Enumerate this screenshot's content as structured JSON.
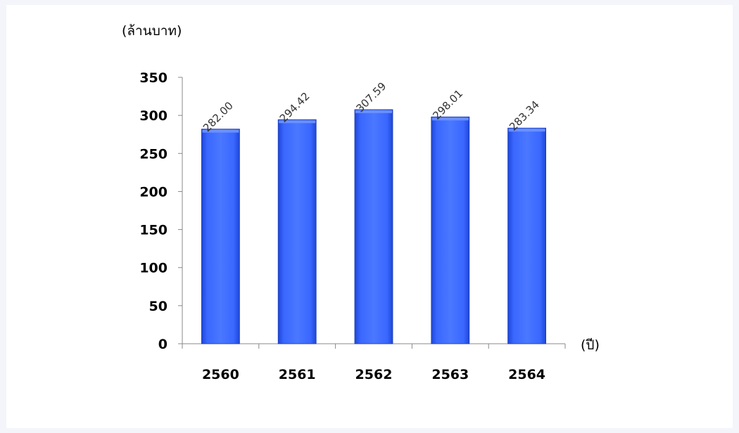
{
  "chart_data": {
    "type": "bar",
    "ylabel": "(ล้านบาท)",
    "xlabel": "(ปี)",
    "categories": [
      "2560",
      "2561",
      "2562",
      "2563",
      "2564"
    ],
    "values": [
      282.0,
      294.42,
      307.59,
      298.01,
      283.34
    ],
    "value_labels": [
      "282.00",
      "294.42",
      "307.59",
      "298.01",
      "283.34"
    ],
    "ylim": [
      0,
      350
    ],
    "yticks": [
      0,
      50,
      100,
      150,
      200,
      250,
      300,
      350
    ],
    "grid": false,
    "legend": "none",
    "bar_color": "#3366ff"
  }
}
